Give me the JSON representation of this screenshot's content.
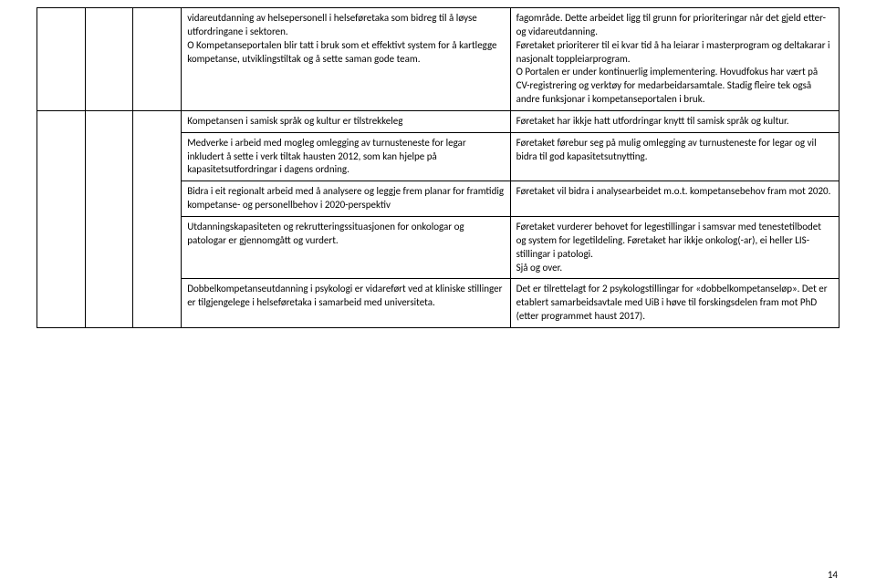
{
  "rows": [
    {
      "left": "vidareutdanning av helsepersonell i helseføretaka som bidreg til å løyse utfordringane i sektoren.\nO Kompetanseportalen blir tatt i bruk som et effektivt system for å kartlegge kompetanse, utviklingstiltak og å sette saman gode team.",
      "right": "fagområde. Dette arbeidet ligg til grunn for prioriteringar når det gjeld etter- og vidareutdanning.\nFøretaket prioriterer til ei kvar tid å ha leiarar i masterprogram og deltakarar i nasjonalt toppleiarprogram.\nO Portalen er under kontinuerlig implementering. Hovudfokus har vært på CV-registrering og verktøy for medarbeidarsamtale. Stadig fleire tek også andre funksjonar i kompetanseportalen i bruk."
    },
    {
      "left": "Kompetansen i samisk språk og kultur er tilstrekkeleg",
      "right": "Føretaket har ikkje hatt utfordringar knytt til samisk språk og kultur."
    },
    {
      "left": "Medverke i arbeid med mogleg omlegging av turnusteneste for legar inkludert å sette i verk tiltak hausten 2012, som kan hjelpe på kapasitetsutfordringar i dagens ordning.",
      "right": "Føretaket førebur seg på mulig omlegging av turnusteneste for legar og vil bidra til god kapasitetsutnytting."
    },
    {
      "left": "Bidra i eit regionalt arbeid med å analysere og leggje frem planar for framtidig kompetanse- og personellbehov i 2020-perspektiv",
      "right": "Føretaket vil bidra i analysearbeidet m.o.t. kompetansebehov fram mot 2020."
    },
    {
      "left": "Utdanningskapasiteten og rekrutteringssituasjonen for onkologar og patologar er gjennomgått og vurdert.",
      "right": "Føretaket vurderer behovet for legestillingar i samsvar med tenestetilbodet og system for legetildeling. Føretaket har ikkje onkolog(-ar), ei heller LIS-stillingar i patologi.\nSjå og over."
    },
    {
      "left": "Dobbelkompetanseutdanning i psykologi er vidareført ved at kliniske stillinger er tilgjengelege i helseføretaka i samarbeid med universiteta.",
      "right": "Det er tilrettelagt for 2 psykologstillingar for «dobbelkompetanseløp». Det er etablert samarbeidsavtale med UiB i høve til forskingsdelen fram mot PhD (etter programmet haust 2017)."
    }
  ],
  "pagenum": "14"
}
